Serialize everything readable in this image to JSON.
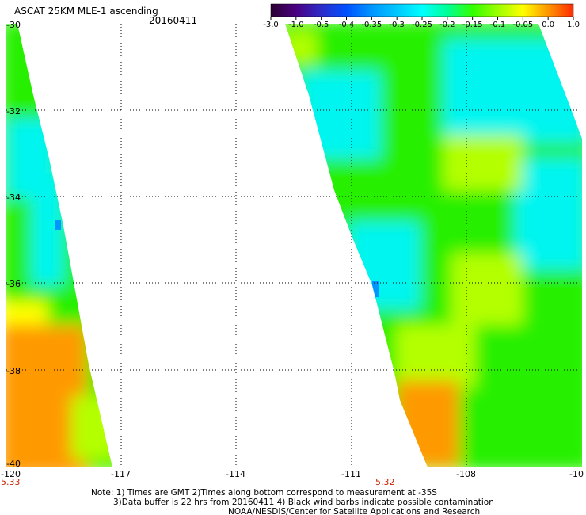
{
  "title": "ASCAT 25KM MLE-1 ascending",
  "date": "20160411",
  "colorbar": {
    "tick_labels": [
      "-3.0",
      "-1.0",
      "-0.5",
      "-0.4",
      "-0.35",
      "-0.3",
      "-0.25",
      "-0.2",
      "-0.15",
      "-0.1",
      "-0.05",
      "0.0",
      "1.0"
    ],
    "colors": [
      "#2a0030",
      "#4b0082",
      "#2c2cc8",
      "#0050ff",
      "#0096ff",
      "#00c8ff",
      "#00ffff",
      "#00ff96",
      "#32ff00",
      "#9bff00",
      "#ffff00",
      "#ff9600",
      "#ff2a00"
    ]
  },
  "y_axis": {
    "labels": [
      "-30",
      "-32",
      "-34",
      "-36",
      "-38",
      "-40"
    ]
  },
  "x_axis": {
    "labels": [
      "-120",
      "-117",
      "-114",
      "-111",
      "-108",
      "-10"
    ]
  },
  "time_labels": [
    "5.33",
    "5.32"
  ],
  "note_lines": [
    "Note: 1) Times are GMT 2)Times along bottom correspond to measurement at -35S",
    "3)Data buffer is 22 hrs from 20160411 4) Black wind barbs indicate possible contamination",
    "NOAA/NESDIS/Center for Satellite Applications and Research"
  ],
  "data_colors": {
    "cyan": "#00f5f0",
    "green": "#28f000",
    "yellowgreen": "#b4ff00",
    "yellow": "#ffff00",
    "orange": "#ff9900",
    "blue": "#0096ff"
  }
}
